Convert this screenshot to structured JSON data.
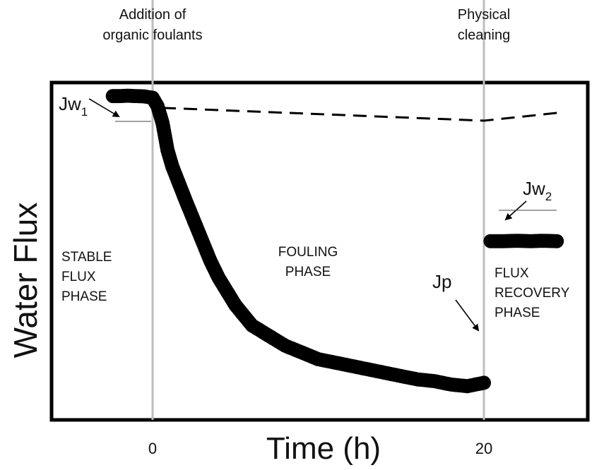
{
  "chart_data": {
    "type": "scatter",
    "xlabel": "Time (h)",
    "ylabel": "Water Flux",
    "x_ticks": [
      {
        "value": 0,
        "label": "0"
      },
      {
        "value": 20,
        "label": "20"
      }
    ],
    "xlim": [
      -6.3,
      26.5
    ],
    "ylim": [
      0,
      1
    ],
    "grid": false,
    "event_lines": [
      {
        "x": 0,
        "label_lines": [
          "Addition of",
          "organic foulants"
        ]
      },
      {
        "x": 20,
        "label_lines": [
          "Physical",
          "cleaning"
        ]
      }
    ],
    "phase_labels": [
      {
        "lines": [
          "STABLE",
          "FLUX",
          "PHASE"
        ]
      },
      {
        "lines": [
          "FOULING",
          "PHASE"
        ]
      },
      {
        "lines": [
          "FLUX",
          "RECOVERY",
          "PHASE"
        ]
      }
    ],
    "series": [
      {
        "role": "measured",
        "x": [
          -2.4,
          -2.0,
          -1.5,
          -1.0,
          -0.5,
          0.0,
          0.3,
          0.6,
          0.9,
          1.2,
          1.6,
          2.0,
          2.5,
          3.0,
          3.5,
          4.0,
          4.5,
          5.0,
          5.5,
          6.0,
          7.0,
          8.0,
          9.0,
          10.0,
          11.0,
          12.0,
          13.0,
          14.0,
          15.0,
          16.0,
          17.0,
          18.0,
          19.0,
          19.5,
          20.0
        ],
        "y": [
          0.96,
          0.96,
          0.961,
          0.96,
          0.959,
          0.955,
          0.93,
          0.88,
          0.8,
          0.75,
          0.7,
          0.65,
          0.59,
          0.53,
          0.47,
          0.42,
          0.38,
          0.34,
          0.31,
          0.28,
          0.25,
          0.22,
          0.2,
          0.18,
          0.17,
          0.16,
          0.15,
          0.14,
          0.13,
          0.12,
          0.115,
          0.105,
          0.1,
          0.105,
          0.11
        ]
      },
      {
        "role": "after cleaning",
        "x": [
          20.4,
          21.2,
          22.0,
          22.8,
          23.6,
          24.4
        ],
        "y": [
          0.53,
          0.53,
          0.531,
          0.53,
          0.531,
          0.53
        ]
      }
    ],
    "trend_line": {
      "x": [
        0.6,
        20.0,
        24.4
      ],
      "y": [
        0.925,
        0.887,
        0.91
      ]
    },
    "annotations": [
      {
        "main": "Jw",
        "sub": "1",
        "point": [
          -2.4,
          0.96
        ]
      },
      {
        "main": "Jw",
        "sub": "2",
        "point": [
          20.4,
          0.53
        ]
      },
      {
        "main": "Jp",
        "sub": "",
        "point": [
          20.0,
          0.11
        ]
      }
    ]
  }
}
